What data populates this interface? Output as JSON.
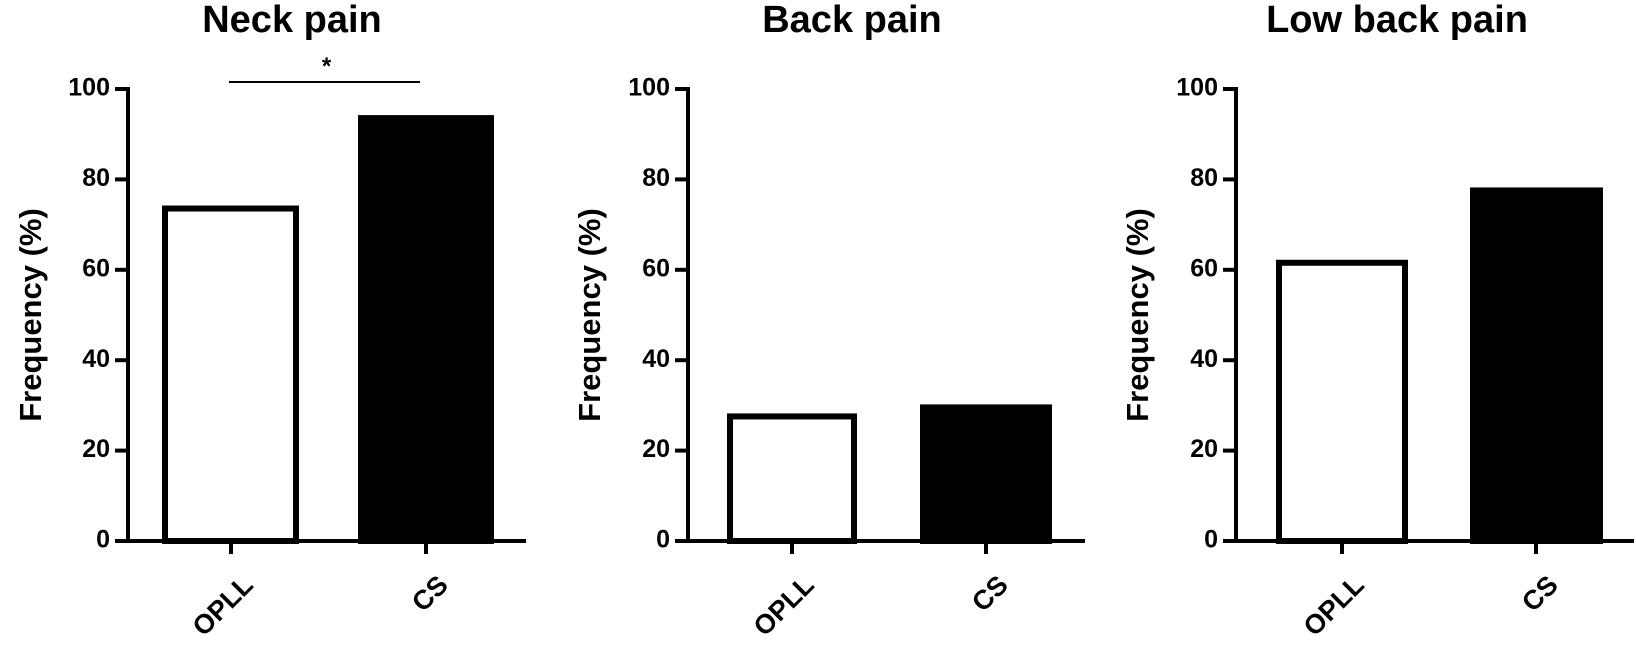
{
  "chart_data": [
    {
      "type": "bar",
      "title": "Neck pain",
      "ylabel": "Frequency (%)",
      "xlabel": "",
      "ylim": [
        0,
        100
      ],
      "yticks": [
        "0",
        "20",
        "40",
        "60",
        "80",
        "100"
      ],
      "categories": [
        "OPLL",
        "CS"
      ],
      "values": [
        74,
        94
      ],
      "bar_colors": [
        "#ffffff",
        "#000000"
      ],
      "significance": {
        "label": "*",
        "between": [
          "OPLL",
          "CS"
        ]
      },
      "grid": false
    },
    {
      "type": "bar",
      "title": "Back pain",
      "ylabel": "Frequency (%)",
      "xlabel": "",
      "ylim": [
        0,
        100
      ],
      "yticks": [
        "0",
        "20",
        "40",
        "60",
        "80",
        "100"
      ],
      "categories": [
        "OPLL",
        "CS"
      ],
      "values": [
        28,
        30
      ],
      "bar_colors": [
        "#ffffff",
        "#000000"
      ],
      "grid": false
    },
    {
      "type": "bar",
      "title": "Low back pain",
      "ylabel": "Frequency (%)",
      "xlabel": "",
      "ylim": [
        0,
        100
      ],
      "yticks": [
        "0",
        "20",
        "40",
        "60",
        "80",
        "100"
      ],
      "categories": [
        "OPLL",
        "CS"
      ],
      "values": [
        62,
        78
      ],
      "bar_colors": [
        "#ffffff",
        "#000000"
      ],
      "grid": false
    }
  ]
}
